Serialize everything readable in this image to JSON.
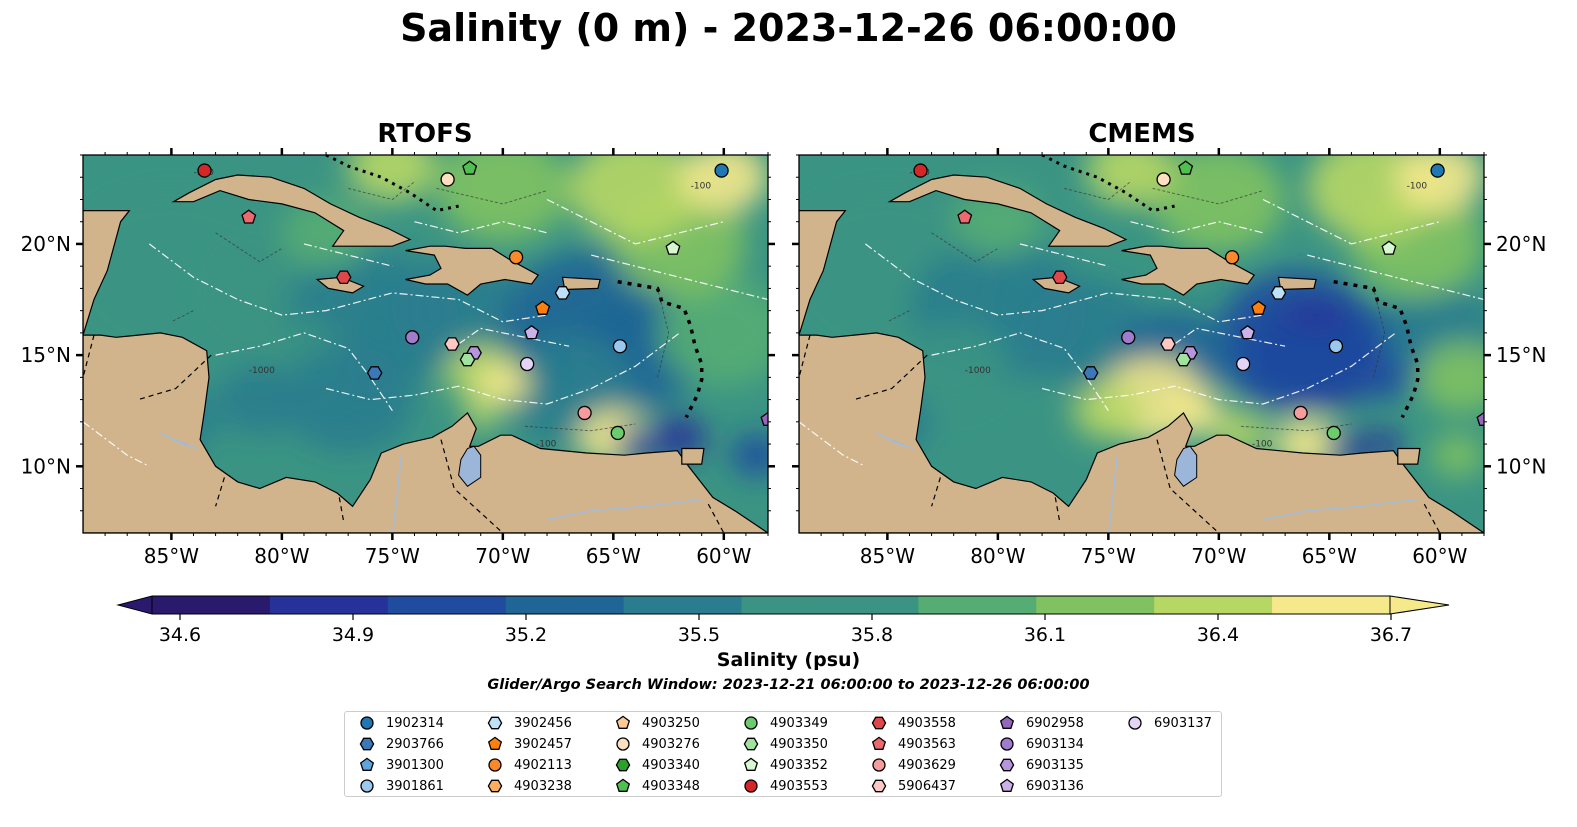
{
  "title": "Salinity (0 m) - 2023-12-26 06:00:00",
  "panels": [
    {
      "title": "RTOFS"
    },
    {
      "title": "CMEMS"
    }
  ],
  "lon_ticks": [
    "85°W",
    "80°W",
    "75°W",
    "70°W",
    "65°W",
    "60°W"
  ],
  "lat_ticks": [
    "20°N",
    "15°N",
    "10°N"
  ],
  "contour_label_texts": [
    "-1000",
    "-100"
  ],
  "colorbar": {
    "label": "Salinity (psu)",
    "ticks": [
      "34.6",
      "34.9",
      "35.2",
      "35.5",
      "35.8",
      "36.1",
      "36.4",
      "36.7"
    ],
    "min": 34.6,
    "max": 36.7,
    "colormap": [
      "#2a1a6e",
      "#27319a",
      "#1f4c9e",
      "#1f6596",
      "#2a7d8e",
      "#3b9483",
      "#55ad73",
      "#80c262",
      "#b7d765",
      "#f5e98c"
    ],
    "extend": "both"
  },
  "search_window": "Glider/Argo Search Window: 2023-12-21 06:00:00 to 2023-12-26 06:00:00",
  "colors": {
    "land": "#d2b48c",
    "deep_ocean": "#2a1a6e",
    "lake": "#9bb6d8",
    "river": "#a8bcd2"
  },
  "legend": [
    {
      "id": "1902314",
      "marker": "circle",
      "color": "#1f77b4"
    },
    {
      "id": "2903766",
      "marker": "hexagon",
      "color": "#3b78b8"
    },
    {
      "id": "3901300",
      "marker": "pentagon",
      "color": "#5ea6de"
    },
    {
      "id": "3901861",
      "marker": "circle",
      "color": "#9cc8ee"
    },
    {
      "id": "3902456",
      "marker": "hexagon",
      "color": "#bfe1f7"
    },
    {
      "id": "3902457",
      "marker": "pentagon",
      "color": "#ff7f0e"
    },
    {
      "id": "4902113",
      "marker": "circle",
      "color": "#f98a2b"
    },
    {
      "id": "4903238",
      "marker": "hexagon",
      "color": "#fcaf62"
    },
    {
      "id": "4903250",
      "marker": "pentagon",
      "color": "#fdc995"
    },
    {
      "id": "4903276",
      "marker": "circle",
      "color": "#fde0c2"
    },
    {
      "id": "4903340",
      "marker": "hexagon",
      "color": "#2ca02c"
    },
    {
      "id": "4903348",
      "marker": "pentagon",
      "color": "#4fbf4f"
    },
    {
      "id": "4903349",
      "marker": "circle",
      "color": "#6ccb6c"
    },
    {
      "id": "4903350",
      "marker": "hexagon",
      "color": "#a1e39e"
    },
    {
      "id": "4903352",
      "marker": "pentagon",
      "color": "#d8f8d2"
    },
    {
      "id": "4903553",
      "marker": "circle",
      "color": "#d62728"
    },
    {
      "id": "4903558",
      "marker": "hexagon",
      "color": "#e0474a"
    },
    {
      "id": "4903563",
      "marker": "pentagon",
      "color": "#ec6a6f"
    },
    {
      "id": "4903629",
      "marker": "circle",
      "color": "#f59c9c"
    },
    {
      "id": "5906437",
      "marker": "hexagon",
      "color": "#fbc8c4"
    },
    {
      "id": "6902958",
      "marker": "pentagon",
      "color": "#9467bd"
    },
    {
      "id": "6903134",
      "marker": "circle",
      "color": "#a07ccc"
    },
    {
      "id": "6903135",
      "marker": "hexagon",
      "color": "#b695dc"
    },
    {
      "id": "6903136",
      "marker": "pentagon",
      "color": "#ccb2ea"
    },
    {
      "id": "6903137",
      "marker": "circle",
      "color": "#e4d4f6"
    }
  ],
  "floats": [
    {
      "id": "4903553",
      "lon": -83.5,
      "lat": 23.3
    },
    {
      "id": "4903563",
      "lon": -81.5,
      "lat": 21.2
    },
    {
      "id": "4903348",
      "lon": -71.5,
      "lat": 23.4
    },
    {
      "id": "4903276",
      "lon": -72.5,
      "lat": 22.9
    },
    {
      "id": "1902314",
      "lon": -60.1,
      "lat": 23.3
    },
    {
      "id": "4903352",
      "lon": -62.3,
      "lat": 19.8
    },
    {
      "id": "4902113",
      "lon": -69.4,
      "lat": 19.4
    },
    {
      "id": "4903558",
      "lon": -77.2,
      "lat": 18.5
    },
    {
      "id": "3902456",
      "lon": -67.3,
      "lat": 17.8
    },
    {
      "id": "3902457",
      "lon": -68.2,
      "lat": 17.1
    },
    {
      "id": "6903136",
      "lon": -68.7,
      "lat": 16.0
    },
    {
      "id": "6903134",
      "lon": -74.1,
      "lat": 15.8
    },
    {
      "id": "5906437",
      "lon": -72.3,
      "lat": 15.5
    },
    {
      "id": "6903135",
      "lon": -71.3,
      "lat": 15.1
    },
    {
      "id": "4903350",
      "lon": -71.6,
      "lat": 14.8
    },
    {
      "id": "6903137",
      "lon": -68.9,
      "lat": 14.6
    },
    {
      "id": "3901861",
      "lon": -64.7,
      "lat": 15.4
    },
    {
      "id": "2903766",
      "lon": -75.8,
      "lat": 14.2
    },
    {
      "id": "4903629",
      "lon": -66.3,
      "lat": 12.4
    },
    {
      "id": "4903349",
      "lon": -64.8,
      "lat": 11.5
    },
    {
      "id": "6902958",
      "lon": -58.0,
      "lat": 12.1
    }
  ]
}
